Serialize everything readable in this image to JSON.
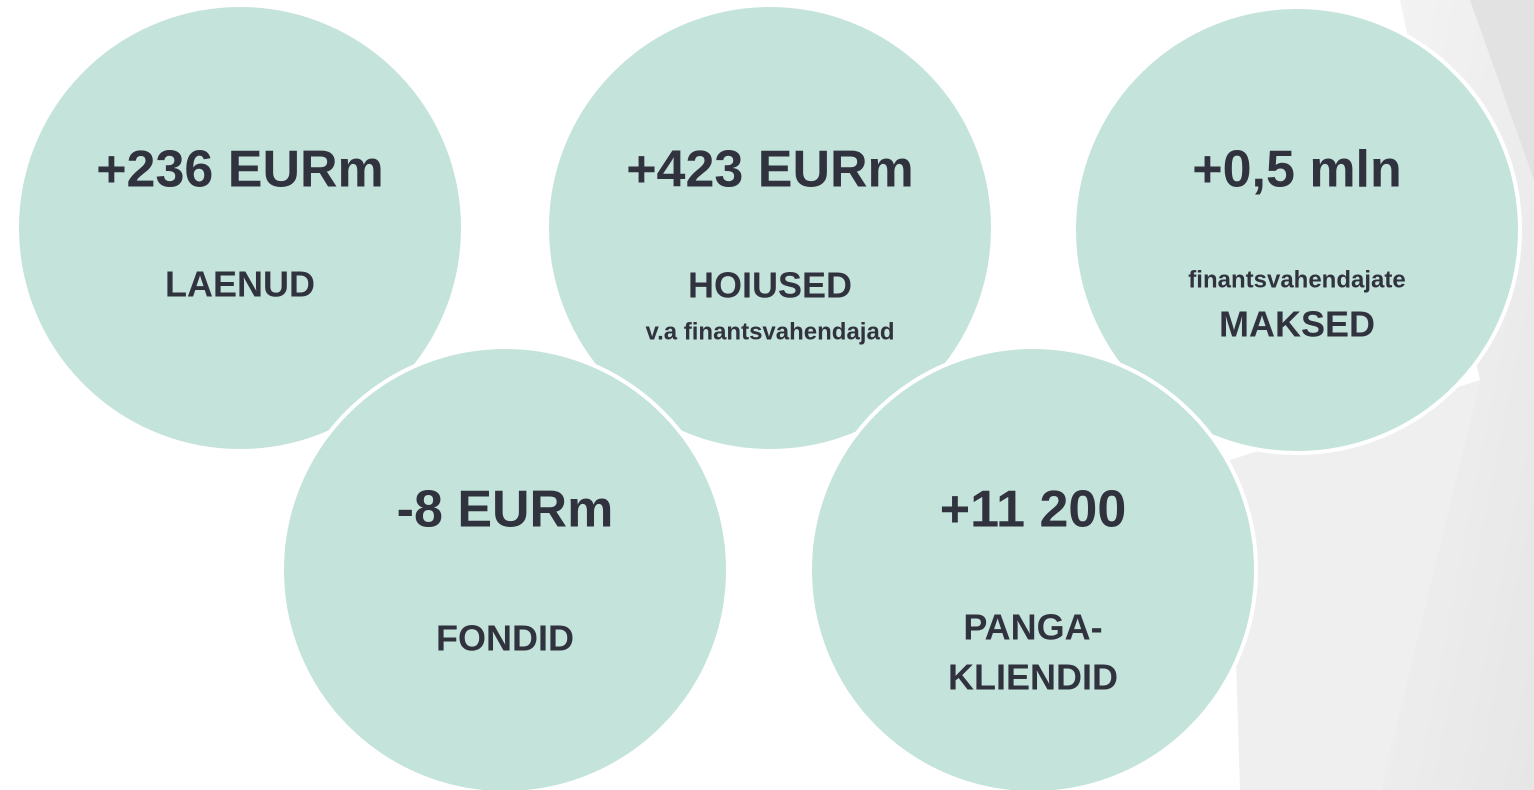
{
  "circles": [
    {
      "value": "+236 EURm",
      "labels": [
        "LAENUD"
      ]
    },
    {
      "value": "+423 EURm",
      "labels": [
        "HOIUSED",
        "v.a finantsvahendajad"
      ]
    },
    {
      "value": "+0,5 mln",
      "labels": [
        "finantsvahendajate",
        "MAKSED"
      ]
    },
    {
      "value": "-8 EURm",
      "labels": [
        "FONDID"
      ]
    },
    {
      "value": "+11 200",
      "labels": [
        "PANGA-",
        "KLIENDID"
      ]
    }
  ]
}
